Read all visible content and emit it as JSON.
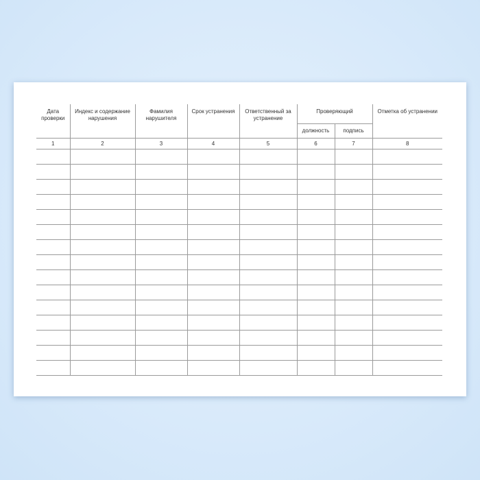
{
  "journal_table": {
    "headers": [
      "Дата проверки",
      "Индекс и содержание нарушения",
      "Фамилия нарушителя",
      "Срок устранения",
      "Ответственный за устранение",
      "Проверяющий",
      "Отметка об устранении"
    ],
    "subheaders": [
      "должность",
      "подпись"
    ],
    "column_numbers": [
      "1",
      "2",
      "3",
      "4",
      "5",
      "6",
      "7",
      "8"
    ],
    "empty_rows": 15
  }
}
